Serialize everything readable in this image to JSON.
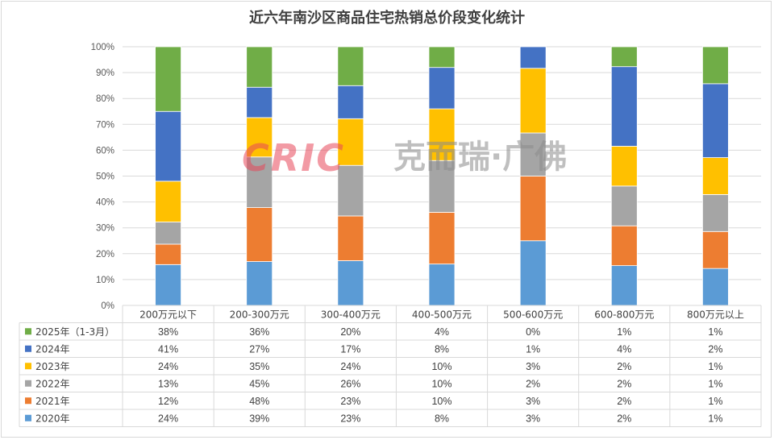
{
  "title": "近六年南沙区商品住宅热销总价段变化统计",
  "watermark": {
    "logo": "CRIC",
    "text": "克而瑞·广佛"
  },
  "colors": {
    "2020年": "#5b9bd5",
    "2021年": "#ed7d31",
    "2022年": "#a5a5a5",
    "2023年": "#ffc000",
    "2024年": "#4472c4",
    "2025年（1-3月）": "#70ad47"
  },
  "chart_data": {
    "type": "bar",
    "stacked_percent": true,
    "title": "近六年南沙区商品住宅热销总价段变化统计",
    "categories": [
      "200万元以下",
      "200-300万元",
      "300-400万元",
      "400-500万元",
      "500-600万元",
      "600-800万元",
      "800万元以上"
    ],
    "y_ticks": [
      "0%",
      "10%",
      "20%",
      "30%",
      "40%",
      "50%",
      "60%",
      "70%",
      "80%",
      "90%",
      "100%"
    ],
    "ylim": [
      0,
      100
    ],
    "grid": true,
    "legend": "data-table",
    "series": [
      {
        "name": "2020年",
        "labels": [
          "24%",
          "39%",
          "23%",
          "8%",
          "3%",
          "2%",
          "1%"
        ],
        "values": [
          24,
          39,
          23,
          8,
          3,
          2,
          1
        ]
      },
      {
        "name": "2021年",
        "labels": [
          "12%",
          "48%",
          "23%",
          "10%",
          "3%",
          "2%",
          "1%"
        ],
        "values": [
          12,
          48,
          23,
          10,
          3,
          2,
          1
        ]
      },
      {
        "name": "2022年",
        "labels": [
          "13%",
          "45%",
          "26%",
          "10%",
          "2%",
          "2%",
          "1%"
        ],
        "values": [
          13,
          45,
          26,
          10,
          2,
          2,
          1
        ]
      },
      {
        "name": "2023年",
        "labels": [
          "24%",
          "35%",
          "24%",
          "10%",
          "3%",
          "2%",
          "1%"
        ],
        "values": [
          24,
          35,
          24,
          10,
          3,
          2,
          1
        ]
      },
      {
        "name": "2024年",
        "labels": [
          "41%",
          "27%",
          "17%",
          "8%",
          "1%",
          "4%",
          "2%"
        ],
        "values": [
          41,
          27,
          17,
          8,
          1,
          4,
          2
        ]
      },
      {
        "name": "2025年（1-3月）",
        "labels": [
          "38%",
          "36%",
          "20%",
          "4%",
          "0%",
          "1%",
          "1%"
        ],
        "values": [
          38,
          36,
          20,
          4,
          0,
          1,
          1
        ]
      }
    ]
  }
}
